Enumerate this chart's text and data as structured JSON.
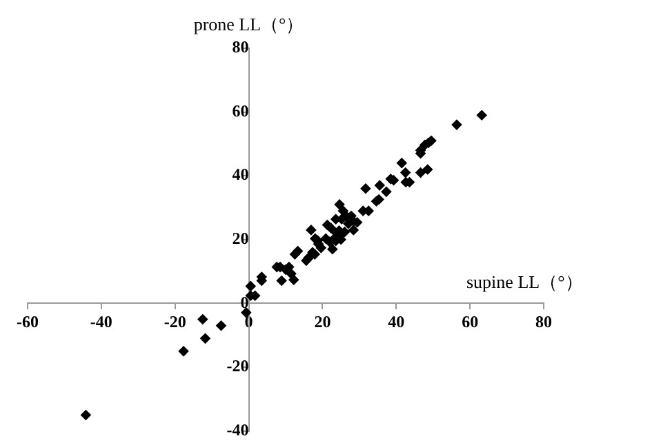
{
  "chart_data": {
    "type": "scatter",
    "xlabel": "supine LL（°）",
    "ylabel": "prone LL（°）",
    "x": [
      63.2,
      56.4,
      49.5,
      48.7,
      47.8,
      46.6,
      46.6,
      48.5,
      46.6,
      41.5,
      42.5,
      42.6,
      43.6,
      38.5,
      39.3,
      37.3,
      35.5,
      34.6,
      35.3,
      31.7,
      31,
      32.5,
      24.6,
      25.6,
      26.4,
      27.8,
      28.4,
      29.4,
      25.2,
      23.6,
      21.3,
      22.3,
      27,
      28.4,
      23.8,
      25,
      24.5,
      26,
      22.9,
      23.6,
      25,
      20.9,
      21.9,
      22.7,
      18,
      18.7,
      16.9,
      18.9,
      17.3,
      17.9,
      16.9,
      16.2,
      15.6,
      19.6,
      13.3,
      12.5,
      10.9,
      10,
      11.5,
      12.2,
      8.9,
      7.6,
      8.5,
      3.5,
      3.5,
      0.5,
      0.5,
      1.7,
      -0.7,
      -12.5,
      -7.5,
      -11.8,
      -17.7,
      -44.2
    ],
    "values": [
      59,
      56,
      51,
      50.3,
      49.7,
      48,
      47,
      42,
      41,
      44,
      41,
      38,
      38,
      39,
      38.6,
      35,
      37,
      32,
      32.6,
      36,
      29,
      29,
      31,
      29,
      27.4,
      27.4,
      25.7,
      25.4,
      26.4,
      26.4,
      24.6,
      23.6,
      25,
      23,
      22,
      21.6,
      22.8,
      22.4,
      20,
      19.6,
      20,
      20.3,
      19.3,
      17,
      20.3,
      19.7,
      23,
      18.6,
      16,
      15.4,
      15,
      14.3,
      13.4,
      17.4,
      16.4,
      15.4,
      11.4,
      10.6,
      9.3,
      7.4,
      7.1,
      11.4,
      11.4,
      8.3,
      7.1,
      5.4,
      2.4,
      2.4,
      -2.9,
      -5,
      -7,
      -11,
      -15,
      -35
    ],
    "color": "#000000",
    "marker": "diamond",
    "xlim": [
      -60,
      80
    ],
    "xticks": [
      -60,
      -40,
      -20,
      0,
      20,
      40,
      60,
      80
    ],
    "ylim": [
      -40,
      80
    ],
    "yticks": [
      -40,
      -20,
      0,
      20,
      40,
      60,
      80
    ],
    "grid": false,
    "legend": false
  }
}
